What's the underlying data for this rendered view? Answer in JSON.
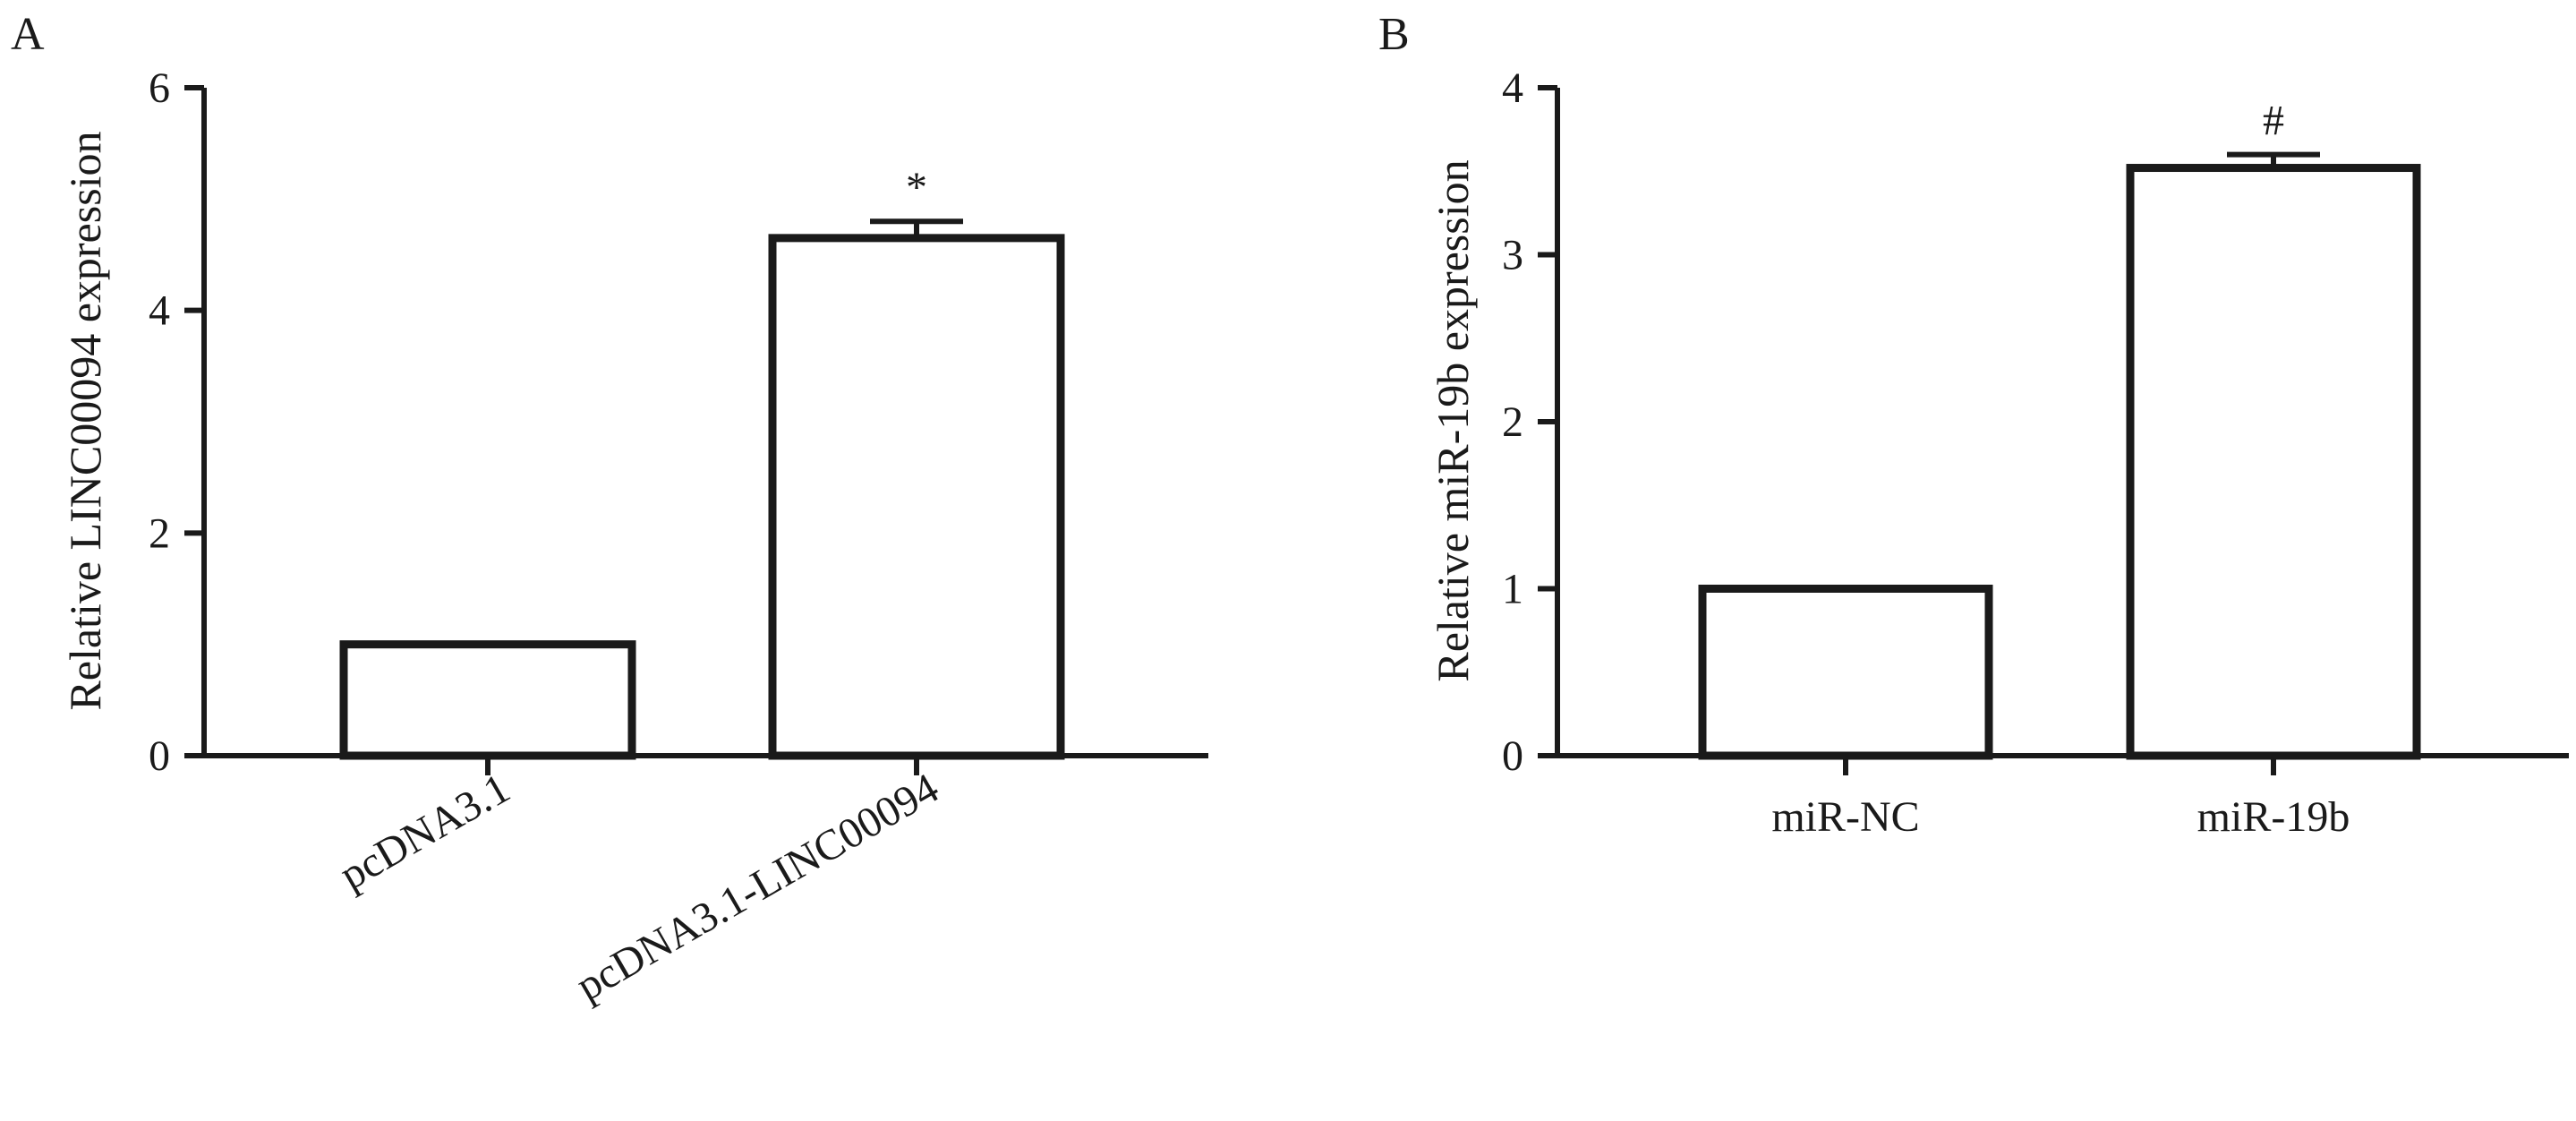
{
  "chart_data": [
    {
      "type": "bar",
      "panel_label": "A",
      "title": "",
      "xlabel": "",
      "ylabel": "Relative LINC00094 expression",
      "categories": [
        "pcDNA3.1",
        "pcDNA3.1-LINC00094"
      ],
      "values": [
        1.0,
        4.65
      ],
      "error": [
        0.0,
        0.15
      ],
      "annotations": [
        "",
        "*"
      ],
      "ylim": [
        0,
        6
      ],
      "yticks": [
        0,
        2,
        4,
        6
      ],
      "xtick_rotation": -30,
      "grid": false,
      "colors": {
        "bar_fill": "#ffffff",
        "bar_edge": "#1a1a1a"
      }
    },
    {
      "type": "bar",
      "panel_label": "B",
      "title": "",
      "xlabel": "",
      "ylabel": "Relative miR-19b expression",
      "categories": [
        "miR-NC",
        "miR-19b"
      ],
      "values": [
        1.0,
        3.52
      ],
      "error": [
        0.0,
        0.08
      ],
      "annotations": [
        "",
        "#"
      ],
      "ylim": [
        0,
        4
      ],
      "yticks": [
        0,
        1,
        2,
        3,
        4
      ],
      "xtick_rotation": 0,
      "grid": false,
      "colors": {
        "bar_fill": "#ffffff",
        "bar_edge": "#1a1a1a"
      }
    }
  ]
}
